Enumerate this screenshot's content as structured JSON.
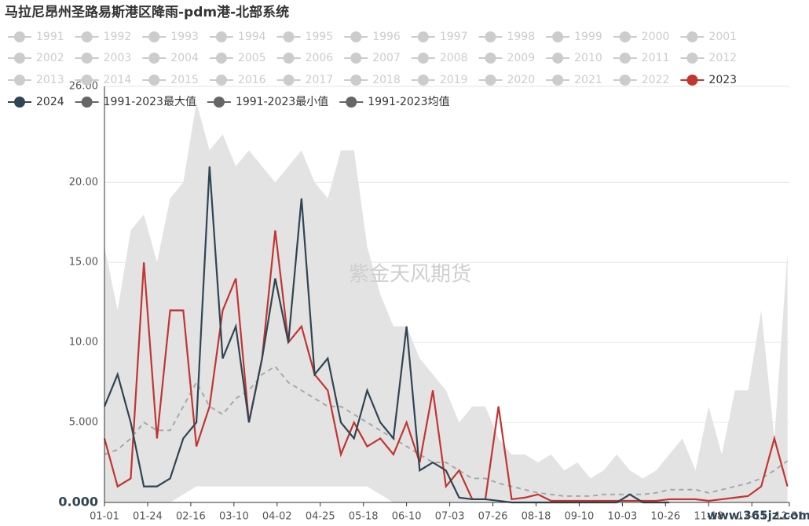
{
  "chart_data": {
    "type": "line",
    "title": "马拉尼昂州圣路易斯港区降雨-pdm港-北部系统",
    "watermarks": [
      "紫金天风期货",
      "www.365jz.com"
    ],
    "inactive_legend": [
      "1991",
      "1992",
      "1993",
      "1994",
      "1995",
      "1996",
      "1997",
      "1998",
      "1999",
      "2000",
      "2001",
      "2002",
      "2003",
      "2004",
      "2005",
      "2006",
      "2007",
      "2008",
      "2009",
      "2010",
      "2011",
      "2012",
      "2013",
      "2014",
      "2015",
      "2016",
      "2017",
      "2018",
      "2019",
      "2020",
      "2021",
      "2022"
    ],
    "inactive_color": "#cccccc",
    "x": [
      1,
      8,
      15,
      22,
      29,
      36,
      43,
      50,
      57,
      64,
      71,
      78,
      85,
      92,
      99,
      106,
      113,
      120,
      127,
      134,
      141,
      148,
      155,
      162,
      169,
      176,
      183,
      190,
      197,
      204,
      211,
      218,
      225,
      232,
      239,
      246,
      253,
      260,
      267,
      274,
      281,
      288,
      295,
      302,
      309,
      316,
      323,
      330,
      337,
      344,
      351,
      358,
      365
    ],
    "xlim": [
      1,
      366
    ],
    "xticks": [
      {
        "value": 1,
        "label": "01-01"
      },
      {
        "value": 24,
        "label": "01-24"
      },
      {
        "value": 47,
        "label": "02-16"
      },
      {
        "value": 70,
        "label": "03-10"
      },
      {
        "value": 93,
        "label": "04-02"
      },
      {
        "value": 116,
        "label": "04-25"
      },
      {
        "value": 139,
        "label": "05-18"
      },
      {
        "value": 162,
        "label": "06-10"
      },
      {
        "value": 185,
        "label": "07-03"
      },
      {
        "value": 208,
        "label": "07-26"
      },
      {
        "value": 231,
        "label": "08-18"
      },
      {
        "value": 254,
        "label": "09-10"
      },
      {
        "value": 277,
        "label": "10-03"
      },
      {
        "value": 300,
        "label": "10-26"
      },
      {
        "value": 323,
        "label": "11-18"
      },
      {
        "value": 346,
        "label": "12-11"
      },
      {
        "value": 366,
        "label": "12-31"
      }
    ],
    "ylim": [
      0,
      26
    ],
    "yticks": [
      {
        "value": 0,
        "label": "0.000"
      },
      {
        "value": 5,
        "label": "5.000"
      },
      {
        "value": 10,
        "label": "10.00"
      },
      {
        "value": 15,
        "label": "15.00"
      },
      {
        "value": 20,
        "label": "20.00"
      },
      {
        "value": 26,
        "label": "26.00"
      }
    ],
    "grid": true,
    "series": [
      {
        "name": "2023",
        "color": "#c23531",
        "style": "line",
        "values": [
          4,
          1,
          1.5,
          15,
          4,
          12,
          12,
          3.5,
          6,
          12,
          14,
          5,
          9,
          17,
          10,
          11,
          8,
          7,
          3,
          5,
          3.5,
          4,
          3,
          5,
          2.5,
          7,
          1,
          2,
          0.2,
          0.2,
          6,
          0.2,
          0.3,
          0.5,
          0.1,
          0.1,
          0.1,
          0.1,
          0.1,
          0.1,
          0.1,
          0.1,
          0.1,
          0.2,
          0.2,
          0.2,
          0.1,
          0.2,
          0.3,
          0.4,
          1,
          4,
          1
        ]
      },
      {
        "name": "2024",
        "color": "#2f4554",
        "style": "line",
        "values": [
          6,
          8,
          5,
          1,
          1,
          1.5,
          4,
          5,
          21,
          9,
          11,
          5,
          9,
          14,
          10,
          19,
          8,
          9,
          5,
          4,
          7,
          5,
          4,
          11,
          2,
          2.5,
          2,
          0.3,
          0.2,
          0.2,
          0.1,
          0,
          0,
          0,
          0,
          0,
          0,
          0,
          0,
          0,
          0.5,
          0,
          0,
          0,
          null,
          null,
          null,
          null,
          null,
          null,
          null,
          null,
          null
        ]
      },
      {
        "name": "1991-2023最大值",
        "color": "#666666",
        "area_color": "#e3e3e3",
        "style": "area",
        "values": [
          16,
          12,
          17,
          18,
          15,
          19,
          20,
          25,
          22,
          23,
          21,
          22,
          21,
          20,
          21,
          22,
          20,
          19,
          22,
          22,
          16,
          13,
          11,
          11,
          9,
          8,
          7,
          5,
          6,
          6,
          4,
          3,
          3,
          2.5,
          3,
          2,
          2.5,
          1.5,
          2,
          3,
          2,
          1.5,
          2,
          3,
          4,
          2,
          6,
          3,
          7,
          7,
          12,
          4,
          15.6
        ]
      },
      {
        "name": "1991-2023最小值",
        "color": "#666666",
        "area_color": "#ffffff",
        "style": "area",
        "values": [
          0,
          0,
          0,
          0,
          0,
          0,
          0.5,
          1,
          1,
          1,
          1,
          1,
          1,
          1,
          1,
          1,
          1,
          1,
          1,
          1,
          1,
          0.5,
          0,
          0,
          0,
          0,
          0,
          0,
          0,
          0,
          0,
          0,
          0,
          0,
          0,
          0,
          0,
          0,
          0,
          0,
          0,
          0,
          0,
          0,
          0,
          0,
          0,
          0,
          0,
          0,
          0,
          0,
          0
        ]
      },
      {
        "name": "1991-2023均值",
        "color": "#a8a8a8",
        "style": "dashed",
        "values": [
          3,
          3.3,
          4,
          5,
          4.5,
          4.5,
          6,
          7.5,
          6,
          5.5,
          6.5,
          7,
          8,
          8.5,
          7.5,
          7,
          6.5,
          6,
          6,
          5.5,
          5,
          4.5,
          4,
          3.5,
          3,
          2.5,
          2.5,
          2,
          1.5,
          1.5,
          1.2,
          1,
          0.8,
          0.6,
          0.5,
          0.4,
          0.4,
          0.4,
          0.5,
          0.5,
          0.5,
          0.5,
          0.6,
          0.8,
          0.8,
          0.8,
          0.6,
          0.8,
          1,
          1.2,
          1.5,
          2,
          2.6
        ]
      }
    ]
  }
}
